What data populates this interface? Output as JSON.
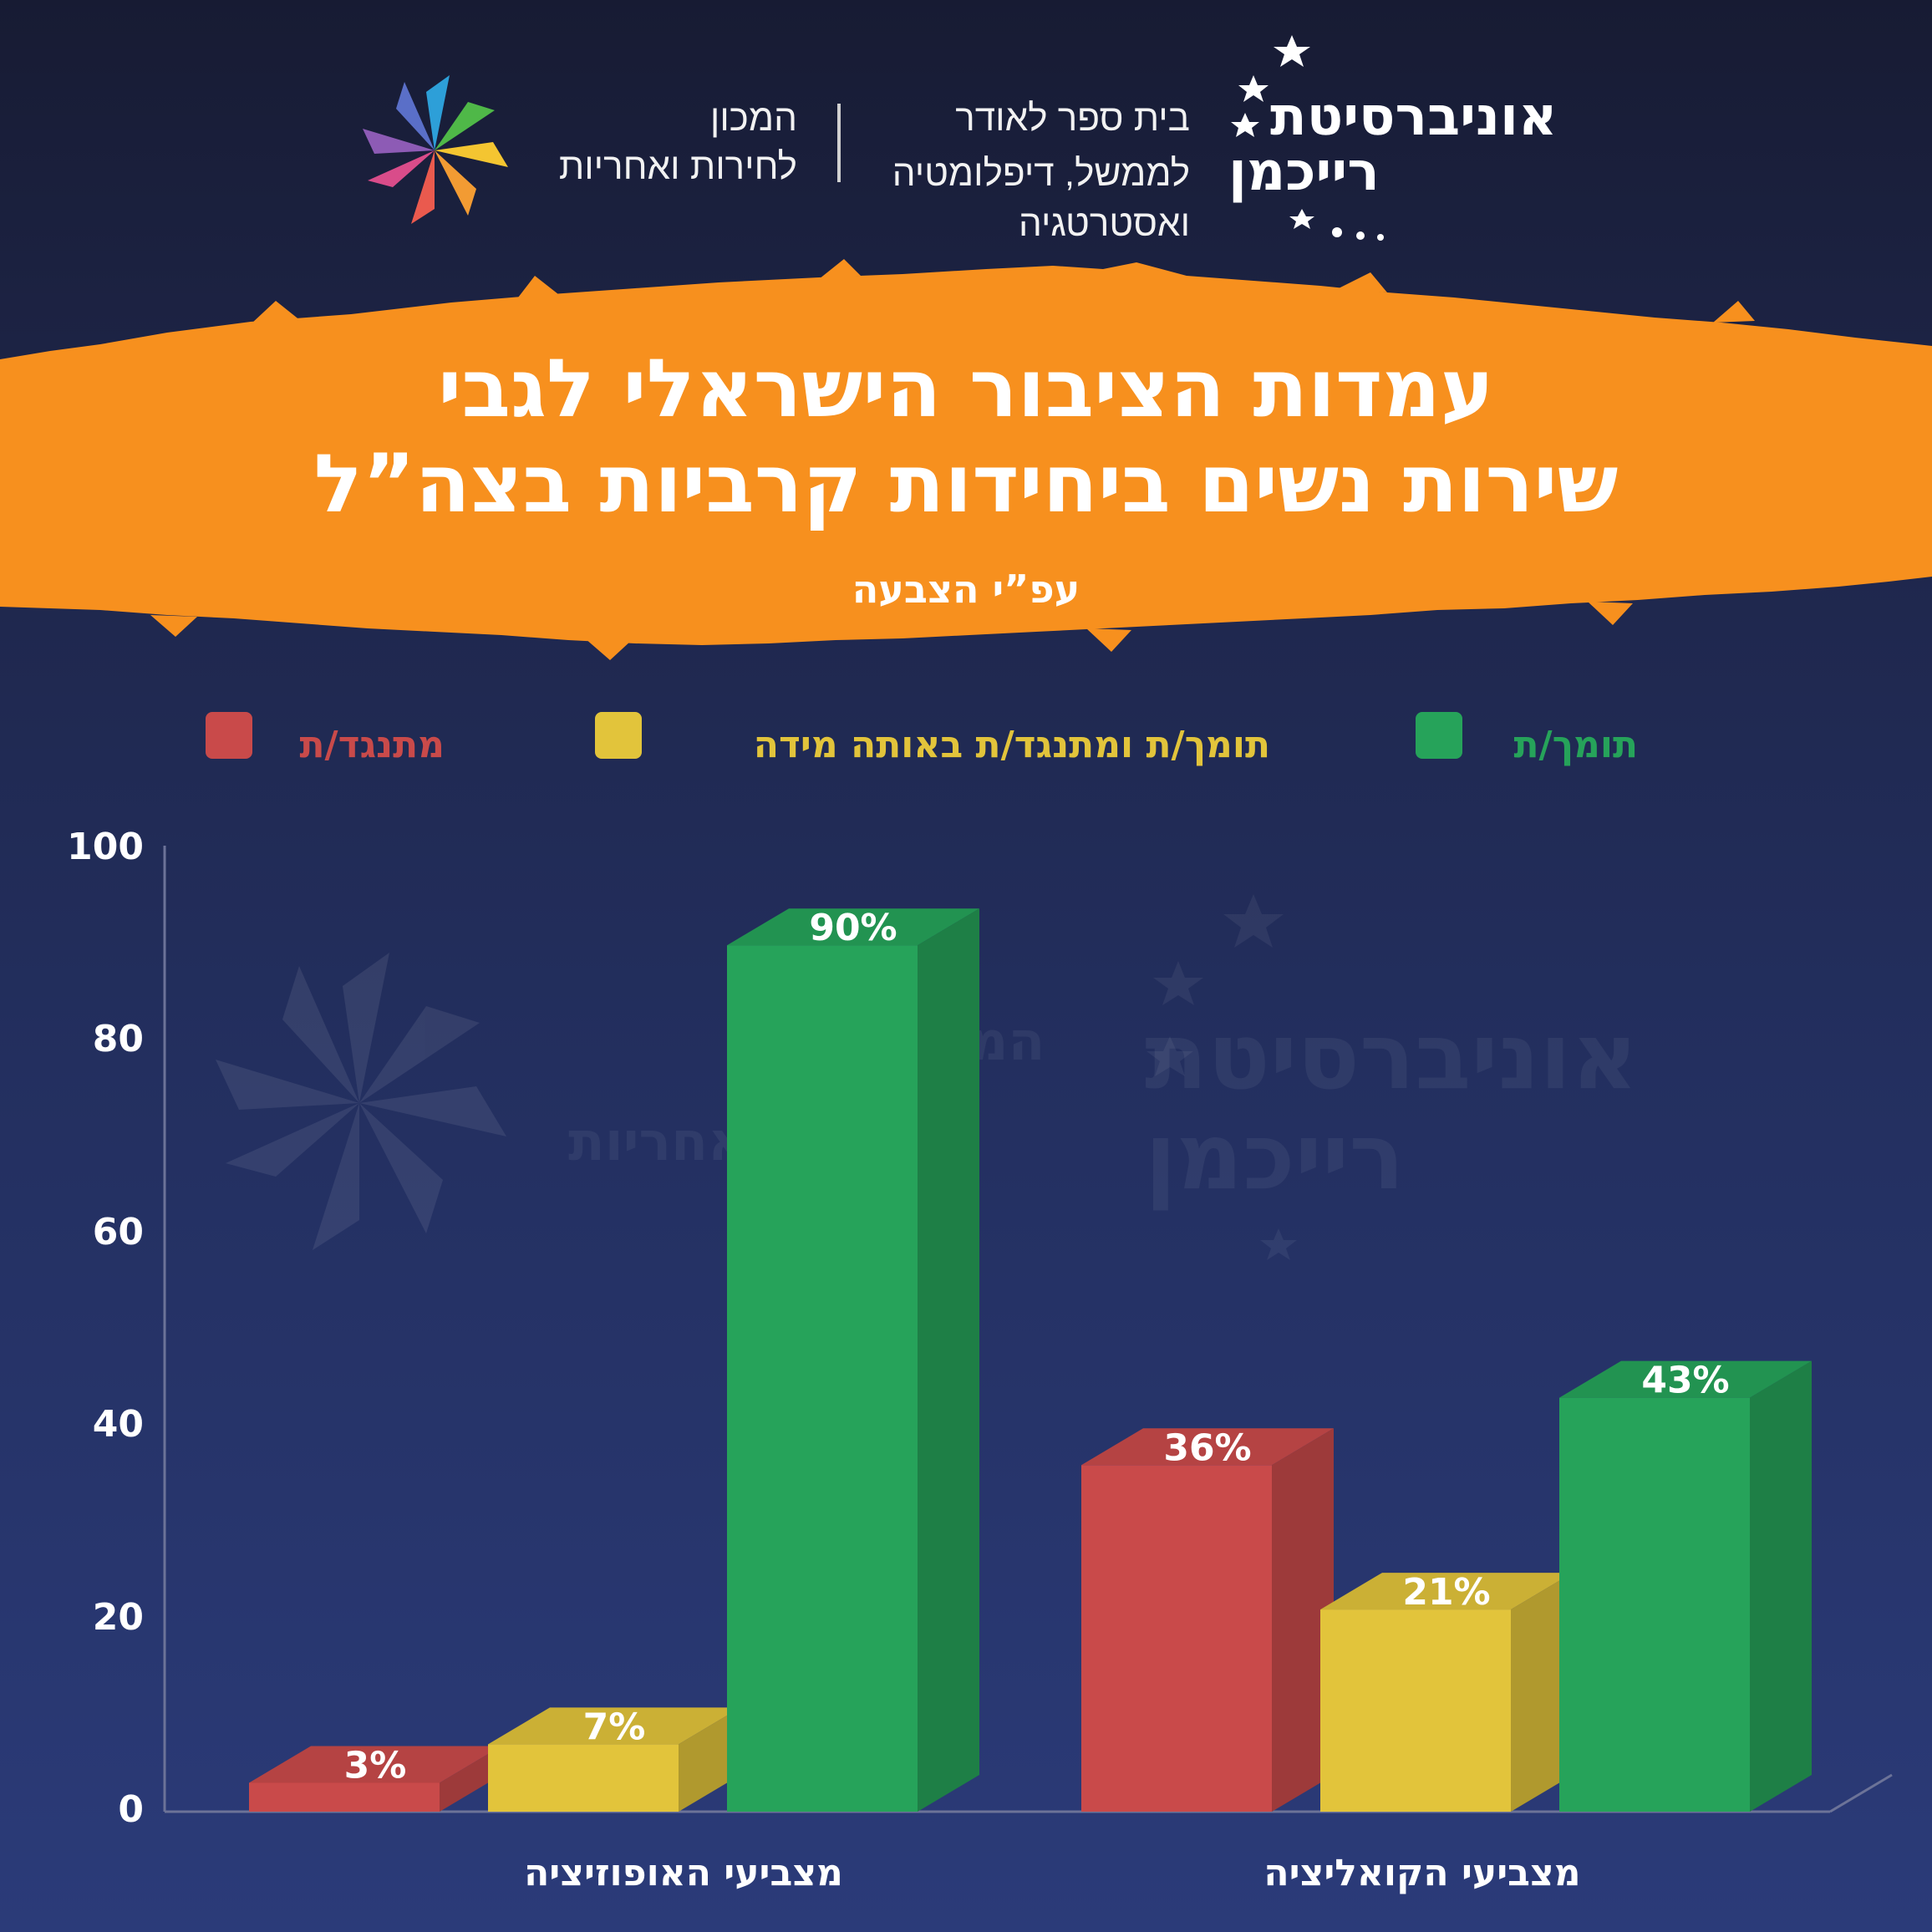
{
  "header": {
    "university_line1": "אוניברסיטת",
    "university_line2": "רייכמן",
    "school_line1": "בית ספר לאודר",
    "school_line2": "לממשל, דיפלומטיה",
    "school_line3": "ואסטרטגיה",
    "institute_line1": "המכון",
    "institute_line2": "לחירות ואחריות"
  },
  "banner": {
    "title_line1": "עמדות הציבור הישראלי לגבי",
    "title_line2": "שירות נשים ביחידות קרביות בצה”ל",
    "subtitle": "עפ”י הצבעה"
  },
  "watermark": {
    "line1": "אוניברסיטת",
    "line2": "רייכמן",
    "inst1": "המכון",
    "inst2": "לחירות ואחריות"
  },
  "colors": {
    "oppose": "#c94a4a",
    "neutral": "#e2c43b",
    "support": "#26a35a",
    "banner": "#f7901e"
  },
  "chart_data": {
    "type": "bar",
    "categories": [
      "מצביעי האופוזיציה",
      "מצביעי הקואליציה"
    ],
    "series": [
      {
        "name": "מתנגד/ת",
        "values": [
          3,
          36
        ],
        "labels": [
          "3%",
          "36%"
        ]
      },
      {
        "name": "תומך/ת ומתנגד/ת באותה מידה",
        "values": [
          7,
          21
        ],
        "labels": [
          "7%",
          "21%"
        ]
      },
      {
        "name": "תומך/ת",
        "values": [
          90,
          43
        ],
        "labels": [
          "90%",
          "43%"
        ]
      }
    ],
    "ylim": [
      0,
      100
    ],
    "yticks": [
      "0",
      "20",
      "40",
      "60",
      "80",
      "100"
    ],
    "legend_position": "top"
  }
}
